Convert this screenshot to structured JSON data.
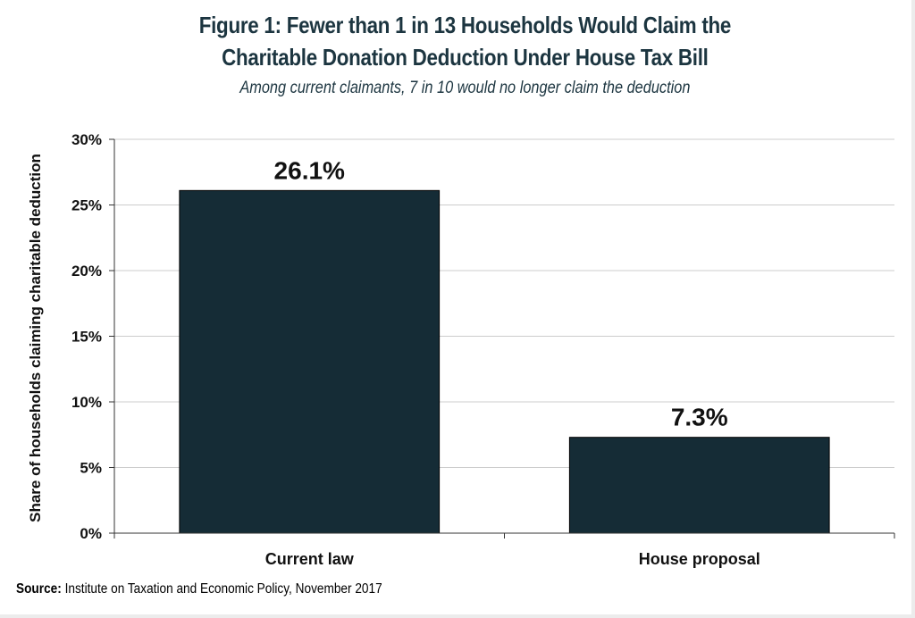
{
  "title_lines": [
    "Figure 1: Fewer than 1 in 13 Households Would Claim the",
    "Charitable Donation Deduction Under House Tax Bill"
  ],
  "subtitle": "Among current claimants, 7 in 10 would no longer claim the deduction",
  "source": {
    "label": "Source:",
    "text": "Institute on Taxation and Economic Policy, November 2017"
  },
  "colors": {
    "bar": "#152c36",
    "title": "#1c3540",
    "grid": "#cccccc"
  },
  "chart_data": {
    "type": "bar",
    "categories": [
      "Current law",
      "House proposal"
    ],
    "values": [
      26.1,
      7.3
    ],
    "value_labels": [
      "26.1%",
      "7.3%"
    ],
    "ylabel": "Share of households claiming charitable deduction",
    "xlabel": "",
    "ylim": [
      0,
      30
    ],
    "yticks": [
      0,
      5,
      10,
      15,
      20,
      25,
      30
    ],
    "ytick_labels": [
      "0%",
      "5%",
      "10%",
      "15%",
      "20%",
      "25%",
      "30%"
    ],
    "grid": true,
    "legend": "none"
  }
}
